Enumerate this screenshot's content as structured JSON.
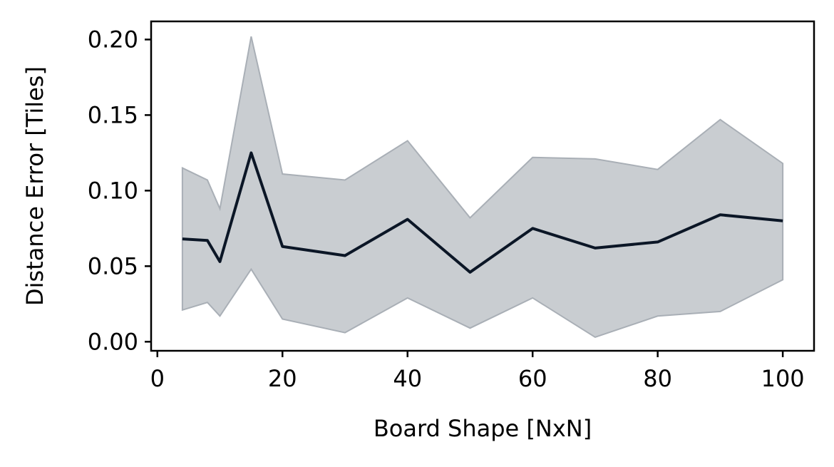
{
  "chart_data": {
    "type": "line",
    "title": "",
    "xlabel": "Board Shape [NxN]",
    "ylabel": "Distance Error [Tiles]",
    "xlim": [
      -1,
      105
    ],
    "ylim": [
      -0.006,
      0.212
    ],
    "x_ticks": [
      0,
      20,
      40,
      60,
      80,
      100
    ],
    "x_tick_labels": [
      "0",
      "20",
      "40",
      "60",
      "80",
      "100"
    ],
    "y_ticks": [
      0.0,
      0.05,
      0.1,
      0.15,
      0.2
    ],
    "y_tick_labels": [
      "0.00",
      "0.05",
      "0.10",
      "0.15",
      "0.20"
    ],
    "grid": false,
    "legend": "none",
    "x": [
      4,
      8,
      10,
      15,
      20,
      30,
      40,
      50,
      60,
      70,
      80,
      90,
      100
    ],
    "series": [
      {
        "values": [
          0.068,
          0.067,
          0.053,
          0.125,
          0.063,
          0.057,
          0.081,
          0.046,
          0.075,
          0.062,
          0.066,
          0.084,
          0.08
        ],
        "color": "#0b1626"
      }
    ],
    "band": {
      "lower": [
        0.021,
        0.026,
        0.017,
        0.048,
        0.015,
        0.006,
        0.029,
        0.009,
        0.029,
        0.003,
        0.017,
        0.02,
        0.041
      ],
      "upper": [
        0.115,
        0.107,
        0.088,
        0.202,
        0.111,
        0.107,
        0.133,
        0.082,
        0.122,
        0.121,
        0.114,
        0.147,
        0.118
      ],
      "fill_color": "#c9cdd1",
      "edge_color": "#a9afb6"
    }
  }
}
